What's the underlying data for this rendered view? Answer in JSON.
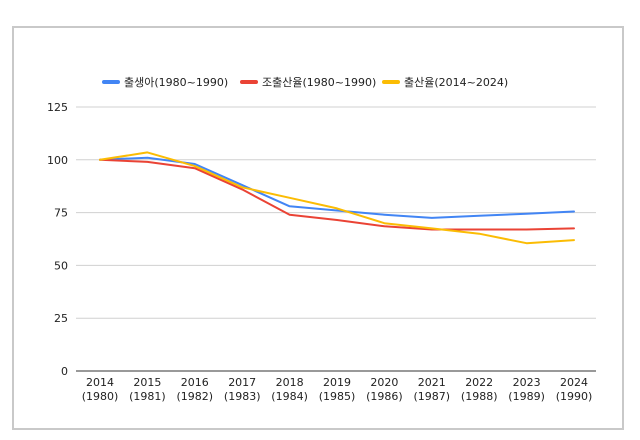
{
  "chart_data": {
    "type": "line",
    "title": "",
    "xlabel": "",
    "ylabel": "",
    "ylim": [
      0,
      125
    ],
    "yticks": [
      0,
      25,
      50,
      75,
      100,
      125
    ],
    "grid": true,
    "legend_position": "top-center",
    "categories": [
      {
        "top": "2014",
        "bottom": "(1980)"
      },
      {
        "top": "2015",
        "bottom": "(1981)"
      },
      {
        "top": "2016",
        "bottom": "(1982)"
      },
      {
        "top": "2017",
        "bottom": "(1983)"
      },
      {
        "top": "2018",
        "bottom": "(1984)"
      },
      {
        "top": "2019",
        "bottom": "(1985)"
      },
      {
        "top": "2020",
        "bottom": "(1986)"
      },
      {
        "top": "2021",
        "bottom": "(1987)"
      },
      {
        "top": "2022",
        "bottom": "(1988)"
      },
      {
        "top": "2023",
        "bottom": "(1989)"
      },
      {
        "top": "2024",
        "bottom": "(1990)"
      }
    ],
    "series": [
      {
        "name": "출생아(1980~1990)",
        "color": "#4285f4",
        "values": [
          100,
          101,
          98,
          88,
          78,
          76,
          74,
          72.5,
          73.5,
          74.5,
          75.5
        ]
      },
      {
        "name": "조출산율(1980~1990)",
        "color": "#ea4335",
        "values": [
          100,
          99,
          96,
          86,
          74,
          71.5,
          68.5,
          67,
          67,
          67,
          67.5
        ]
      },
      {
        "name": "출산율(2014~2024)",
        "color": "#fbbc04",
        "values": [
          100,
          103.5,
          97,
          87,
          82,
          77,
          70,
          67.5,
          65,
          60.5,
          62
        ]
      }
    ]
  }
}
